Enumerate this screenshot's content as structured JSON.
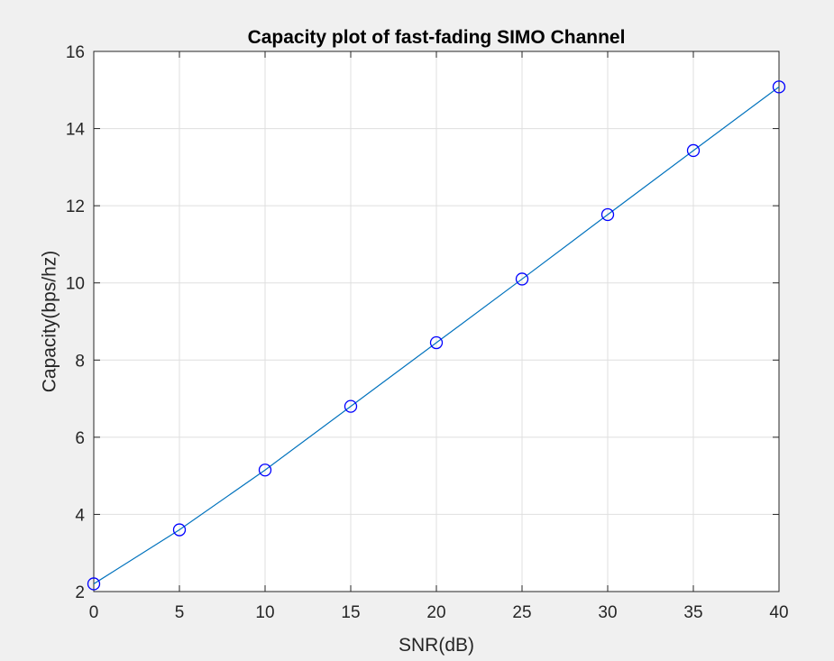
{
  "chart_data": {
    "type": "line",
    "title": "Capacity plot of fast-fading SIMO Channel",
    "xlabel": "SNR(dB)",
    "ylabel": "Capacity(bps/hz)",
    "xlim": [
      0,
      40
    ],
    "ylim": [
      2,
      16
    ],
    "xticks": [
      0,
      5,
      10,
      15,
      20,
      25,
      30,
      35,
      40
    ],
    "yticks": [
      2,
      4,
      6,
      8,
      10,
      12,
      14,
      16
    ],
    "grid": true,
    "marker": "circle",
    "line_color": "#0072bd",
    "marker_color": "#0000ff",
    "series": [
      {
        "x": [
          0,
          5,
          10,
          15,
          20,
          25,
          30,
          35,
          40
        ],
        "y": [
          2.2,
          3.6,
          5.15,
          6.8,
          8.45,
          10.1,
          11.77,
          13.43,
          15.08
        ]
      }
    ]
  }
}
